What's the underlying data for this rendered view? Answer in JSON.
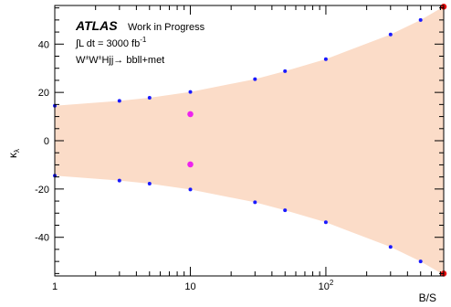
{
  "chart_data": {
    "type": "area",
    "xscale": "log",
    "xlabel": "B/S",
    "ylabel": "κ",
    "ylabel_subscript": "λ",
    "xlim": [
      1,
      740
    ],
    "ylim": [
      -56,
      56
    ],
    "x_ticks": [
      {
        "value": 1,
        "label": "1"
      },
      {
        "value": 10,
        "label": "10"
      },
      {
        "value": 100,
        "label": "10",
        "sup": "2"
      }
    ],
    "y_ticks": [
      -40,
      -20,
      0,
      20,
      40
    ],
    "annotation": {
      "experiment": "ATLAS",
      "status": "Work in Progress",
      "luminosity": "∫L dt = 3000 fb",
      "luminosity_sup": "-1",
      "process": "W",
      "process_sup1": "±",
      "process_mid": "W",
      "process_sup2": "±",
      "process_end": "Hjj→ bbll+met"
    },
    "band": {
      "color": "#fbdcc8",
      "x": [
        1,
        3,
        5,
        10,
        30,
        50,
        100,
        300,
        500,
        740
      ],
      "upper": [
        14.5,
        16.5,
        17.8,
        20.2,
        25.5,
        28.8,
        33.8,
        44.0,
        50.0,
        55.5
      ],
      "lower": [
        -14.5,
        -16.5,
        -17.8,
        -20.2,
        -25.5,
        -28.8,
        -33.8,
        -44.0,
        -50.0,
        -55.5
      ]
    },
    "series": [
      {
        "color": "#1a1aff",
        "marker": "dot",
        "points": [
          [
            1,
            14.5
          ],
          [
            3,
            16.5
          ],
          [
            5,
            17.8
          ],
          [
            10,
            20.2
          ],
          [
            30,
            25.5
          ],
          [
            50,
            28.8
          ],
          [
            100,
            33.8
          ],
          [
            300,
            44.0
          ],
          [
            500,
            50.0
          ],
          [
            1,
            -14.5
          ],
          [
            3,
            -16.5
          ],
          [
            5,
            -17.8
          ],
          [
            10,
            -20.2
          ],
          [
            30,
            -25.5
          ],
          [
            50,
            -28.8
          ],
          [
            100,
            -33.8
          ],
          [
            300,
            -44.0
          ],
          [
            500,
            -50.0
          ]
        ]
      },
      {
        "color": "#ee22ee",
        "marker": "dot",
        "points": [
          [
            10,
            11.0
          ],
          [
            10,
            -9.8
          ]
        ]
      },
      {
        "color": "#ee1111",
        "marker": "dot",
        "points": [
          [
            740,
            55.5
          ],
          [
            740,
            -55.0
          ]
        ]
      }
    ]
  }
}
